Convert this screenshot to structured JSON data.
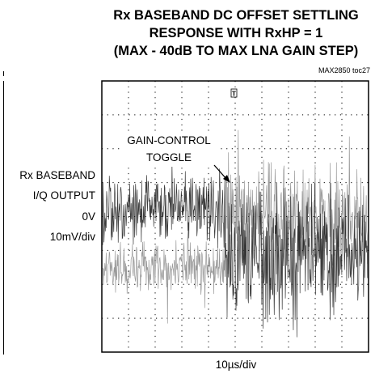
{
  "title": {
    "line1": "Rx BASEBAND DC OFFSET SETTLING",
    "line2": "RESPONSE WITH RxHP = 1",
    "line3": "(MAX - 40dB TO MAX LNA GAIN STEP)"
  },
  "figure_id": "MAX2850 toc27",
  "left_axis": {
    "label_line1": "Rx BASEBAND",
    "label_line2": "I/Q OUTPUT",
    "zero_label": "0V",
    "scale": "10mV/div"
  },
  "x_scale": "10µs/div",
  "trigger_marker": "T",
  "annotation": {
    "line1": "GAIN-CONTROL",
    "line2": "TOGGLE"
  },
  "colors": {
    "trace_dark": "#1a1a1a",
    "trace_light": "#9a9a9a",
    "grid": "#000000"
  },
  "chart_data": {
    "type": "line",
    "title": "Rx BASEBAND DC OFFSET SETTLING RESPONSE WITH RxHP = 1 (MAX - 40dB TO MAX LNA GAIN STEP)",
    "xlabel": "10µs/div",
    "ylabel": "Rx BASEBAND I/Q OUTPUT 10mV/div",
    "x_divisions": 10,
    "y_divisions": 8,
    "grid": true,
    "zero_level_division": 4.6,
    "gain_toggle_division": 4.6,
    "series": [
      {
        "noise_peak_div_before": 1.0,
        "noise_peak_div_after": 2.2,
        "offset_div_before": -0.9,
        "offset_div_after": 0.6
      },
      {
        "noise_peak_div_before": 1.4,
        "noise_peak_div_after": 2.6,
        "offset_div_before": 0.9,
        "offset_div_after": -0.6
      }
    ]
  }
}
